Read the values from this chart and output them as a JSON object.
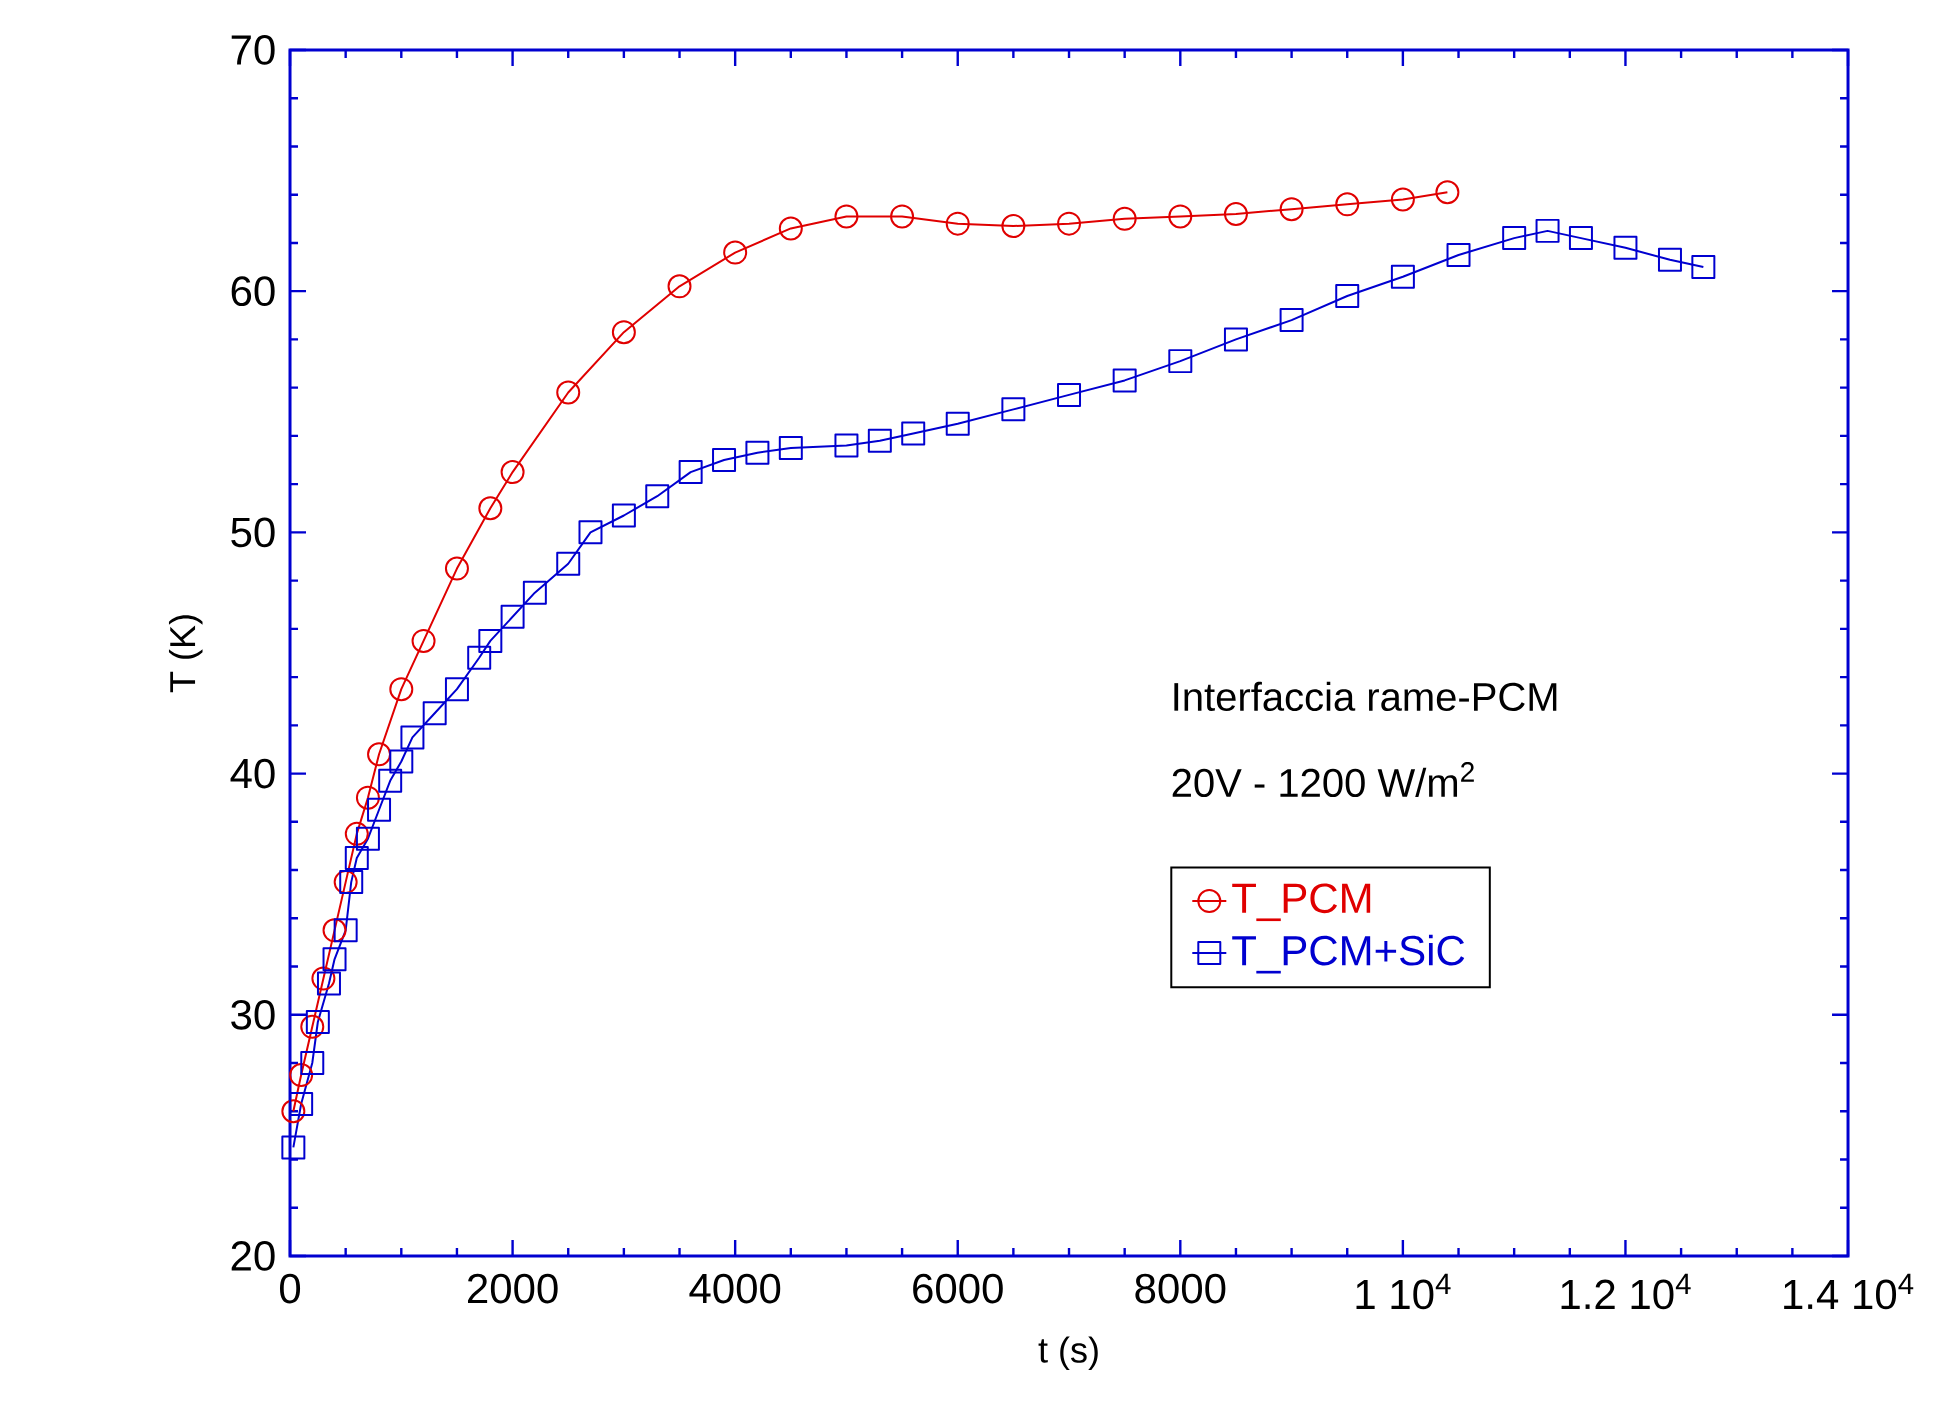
{
  "chart_data": {
    "type": "line",
    "xlabel": "t (s)",
    "ylabel": "T (K)",
    "xlim": [
      0,
      14000
    ],
    "ylim": [
      20,
      70
    ],
    "xticks": [
      0,
      2000,
      4000,
      6000,
      8000,
      {
        "value": 10000,
        "label": "1 10$^{4}$"
      },
      {
        "value": 12000,
        "label": "1.2 10$^{4}$"
      },
      {
        "value": 14000,
        "label": "1.4 10$^{4}$"
      }
    ],
    "yticks": [
      20,
      30,
      40,
      50,
      60,
      70
    ],
    "grid": false,
    "legend": "right",
    "line_style": "solid",
    "annotations": [
      "Interfaccia  rame-PCM",
      "20V - 1200 W/m$^{2}$"
    ],
    "series": [
      {
        "name": "T_PCM",
        "color": "#e00000",
        "marker": "circle",
        "x": [
          30,
          100,
          200,
          300,
          400,
          500,
          600,
          700,
          800,
          1000,
          1200,
          1500,
          1800,
          2000,
          2500,
          3000,
          3500,
          4000,
          4500,
          5000,
          5500,
          6000,
          6500,
          7000,
          7500,
          8000,
          8500,
          9000,
          9500,
          10000,
          10400
        ],
        "values": [
          26,
          27.5,
          29.5,
          31.5,
          33.5,
          35.5,
          37.5,
          39,
          40.8,
          43.5,
          45.5,
          48.5,
          51,
          52.5,
          55.8,
          58.3,
          60.2,
          61.6,
          62.6,
          63.1,
          63.1,
          62.8,
          62.7,
          62.8,
          63,
          63.1,
          63.2,
          63.4,
          63.6,
          63.8,
          64.1
        ]
      },
      {
        "name": "T_PCM+SiC",
        "color": "#0000d0",
        "marker": "square",
        "x": [
          30,
          100,
          200,
          250,
          350,
          400,
          500,
          550,
          600,
          700,
          800,
          900,
          1000,
          1100,
          1300,
          1500,
          1700,
          1800,
          2000,
          2200,
          2500,
          2700,
          3000,
          3300,
          3600,
          3900,
          4200,
          4500,
          5000,
          5300,
          5600,
          6000,
          6500,
          7000,
          7500,
          8000,
          8500,
          9000,
          9500,
          10000,
          10500,
          11000,
          11300,
          11600,
          12000,
          12400,
          12700
        ],
        "values": [
          24.5,
          26.3,
          28,
          29.7,
          31.3,
          32.3,
          33.5,
          35.5,
          36.5,
          37.3,
          38.5,
          39.7,
          40.5,
          41.5,
          42.5,
          43.5,
          44.8,
          45.5,
          46.5,
          47.5,
          48.7,
          50,
          50.7,
          51.5,
          52.5,
          53,
          53.3,
          53.5,
          53.6,
          53.8,
          54.1,
          54.5,
          55.1,
          55.7,
          56.3,
          57.1,
          58,
          58.8,
          59.8,
          60.6,
          61.5,
          62.2,
          62.5,
          62.2,
          61.8,
          61.3,
          61
        ]
      }
    ]
  }
}
